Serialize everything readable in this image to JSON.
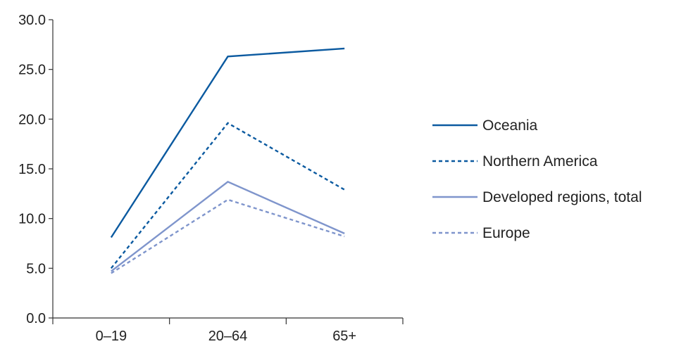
{
  "chart_data": {
    "type": "line",
    "categories": [
      "0–19",
      "20–64",
      "65+"
    ],
    "ylim": [
      0,
      30
    ],
    "yticks": [
      "0.0",
      "5.0",
      "10.0",
      "15.0",
      "20.0",
      "25.0",
      "30.0"
    ],
    "grid": false,
    "legend_position": "right",
    "series": [
      {
        "name": "Oceania",
        "values": [
          8.1,
          26.3,
          27.1
        ],
        "color": "#0b5aa0",
        "dash": "solid"
      },
      {
        "name": "Northern America",
        "values": [
          5.0,
          19.6,
          12.9
        ],
        "color": "#0b5aa0",
        "dash": "dashed"
      },
      {
        "name": "Developed regions, total",
        "values": [
          4.7,
          13.7,
          8.5
        ],
        "color": "#7f95cc",
        "dash": "solid"
      },
      {
        "name": "Europe",
        "values": [
          4.5,
          11.9,
          8.2
        ],
        "color": "#7f95cc",
        "dash": "dashed"
      }
    ]
  }
}
